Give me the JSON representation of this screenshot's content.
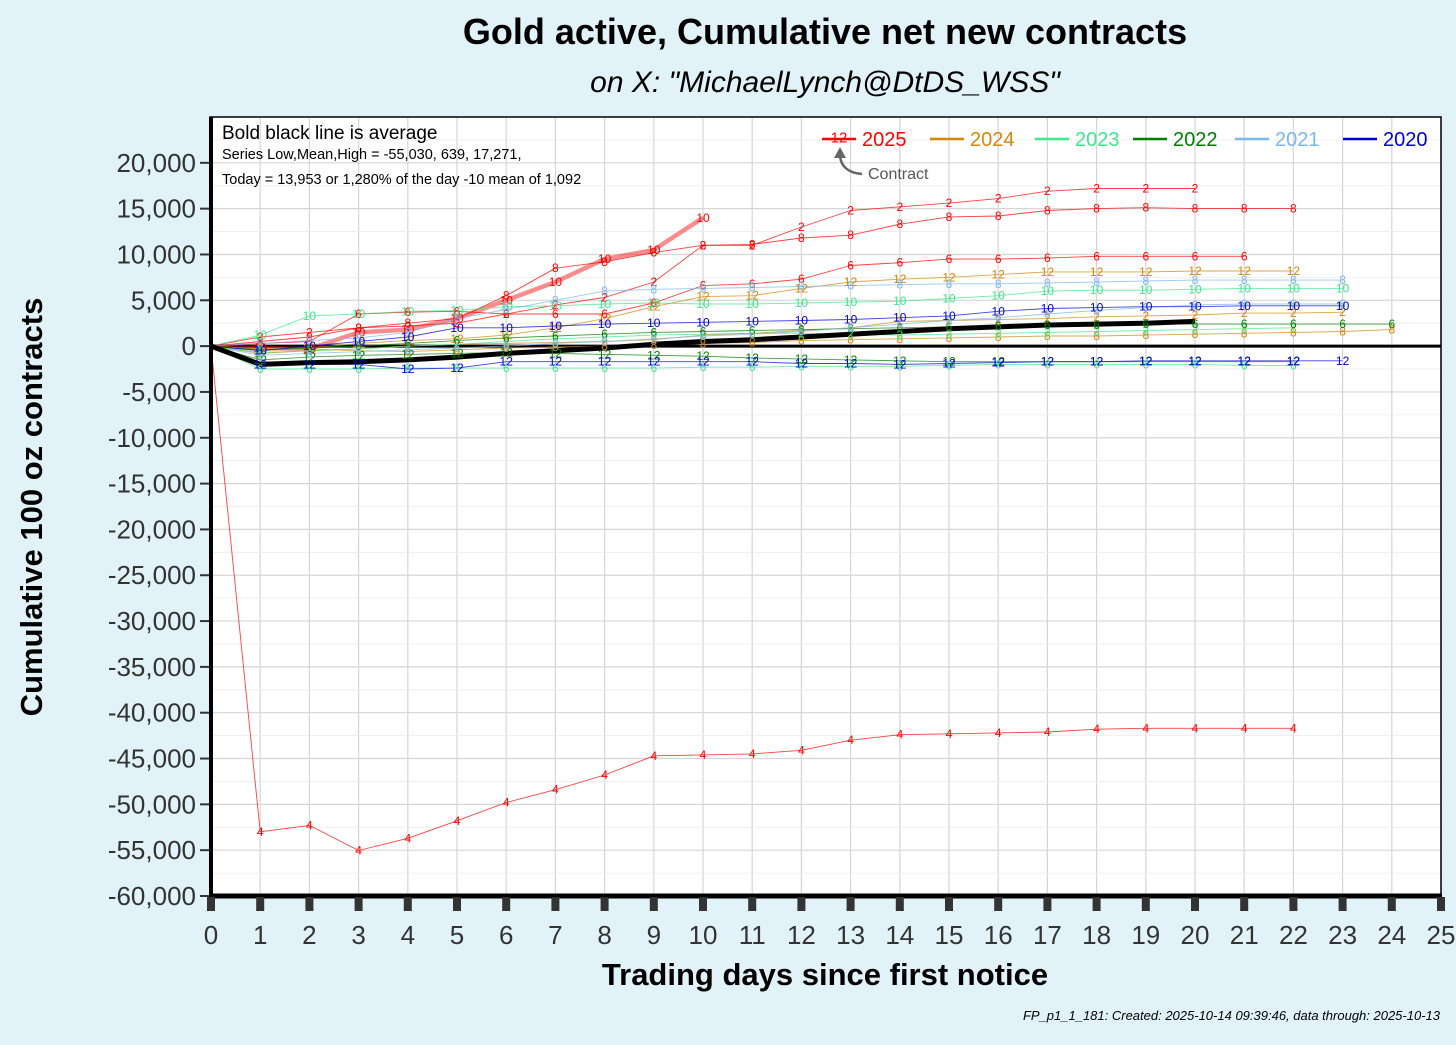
{
  "chart_data": {
    "type": "line",
    "title": "Gold active, Cumulative net new contracts",
    "subtitle": "on X:   \"MichaelLynch@DtDS_WSS\"",
    "xlabel": "Trading days since first notice",
    "ylabel": "Cumulative 100 oz contracts",
    "xlim": [
      0,
      25
    ],
    "ylim": [
      -60000,
      25000
    ],
    "x_ticks": [
      0,
      1,
      2,
      3,
      4,
      5,
      6,
      7,
      8,
      9,
      10,
      11,
      12,
      13,
      14,
      15,
      16,
      17,
      18,
      19,
      20,
      21,
      22,
      23,
      24,
      25
    ],
    "y_ticks": [
      20000,
      15000,
      10000,
      5000,
      0,
      -5000,
      -10000,
      -15000,
      -20000,
      -25000,
      -30000,
      -35000,
      -40000,
      -45000,
      -50000,
      -55000,
      -60000
    ],
    "y_tick_labels": [
      "20,000",
      "15,000",
      "10,000",
      "5,000",
      "0",
      "-5,000",
      "-10,000",
      "-15,000",
      "-20,000",
      "-25,000",
      "-30,000",
      "-35,000",
      "-40,000",
      "-45,000",
      "-50,000",
      "-55,000",
      "-60,000"
    ],
    "x_tick_labels": [
      "0",
      "1",
      "2",
      "3",
      "4",
      "5",
      "6",
      "7",
      "8",
      "9",
      "10",
      "11",
      "12",
      "13",
      "14",
      "15",
      "16",
      "17",
      "18",
      "19",
      "20",
      "21",
      "22",
      "23",
      "24",
      "25"
    ],
    "grid": true,
    "legend_position": "top-right",
    "annotations": {
      "line1": "Bold black line is average",
      "line2": "Series Low,Mean,High = -55,030,    639, 17,271,",
      "line3": "Today = 13,953 or 1,280% of the day -10 mean of 1,092",
      "contract_pointer": "Contract",
      "legend_sample_label": "12"
    },
    "legend": [
      {
        "name": "2025",
        "color": "#ff0000"
      },
      {
        "name": "2024",
        "color": "#d4870a"
      },
      {
        "name": "2023",
        "color": "#3ee88c"
      },
      {
        "name": "2022",
        "color": "#008000"
      },
      {
        "name": "2021",
        "color": "#7ab8f0"
      },
      {
        "name": "2020",
        "color": "#0000dd"
      }
    ],
    "series": [
      {
        "year": "2025",
        "label": "10",
        "color": "#ff0000",
        "bold": true,
        "x": [
          0,
          1,
          2,
          3,
          4,
          5,
          6,
          7,
          8,
          9,
          10
        ],
        "y": [
          0,
          -200,
          -300,
          1500,
          1800,
          3000,
          5000,
          7000,
          9500,
          10500,
          14000
        ]
      },
      {
        "year": "2025",
        "label": "8",
        "color": "#ff0000",
        "x": [
          0,
          1,
          2,
          3,
          4,
          5,
          6,
          7,
          8,
          9,
          10,
          11,
          12,
          13,
          14,
          15,
          16,
          17,
          18,
          19,
          20,
          21,
          22
        ],
        "y": [
          0,
          500,
          1000,
          2000,
          2500,
          3000,
          5500,
          8500,
          9200,
          10200,
          11000,
          11100,
          11800,
          12100,
          13300,
          14100,
          14200,
          14800,
          15000,
          15100,
          15000,
          15000,
          15000
        ]
      },
      {
        "year": "2025",
        "label": "2",
        "color": "#ff0000",
        "x": [
          0,
          1,
          2,
          3,
          4,
          5,
          6,
          7,
          8,
          9,
          10,
          11,
          12,
          13,
          14,
          15,
          16,
          17,
          18,
          19,
          20
        ],
        "y": [
          0,
          1000,
          1500,
          2000,
          2200,
          2500,
          3500,
          4500,
          5300,
          7000,
          11000,
          11000,
          13000,
          14800,
          15200,
          15600,
          16100,
          16900,
          17200,
          17200,
          17200
        ]
      },
      {
        "year": "2025",
        "label": "6",
        "color": "#ff0000",
        "x": [
          0,
          1,
          2,
          3,
          4,
          5,
          6,
          7,
          8,
          9,
          10,
          11,
          12,
          13,
          14,
          15,
          16,
          17,
          18,
          19,
          20,
          21
        ],
        "y": [
          0,
          300,
          500,
          3500,
          3700,
          3800,
          3500,
          3500,
          3500,
          4700,
          6600,
          6800,
          7300,
          8800,
          9100,
          9500,
          9500,
          9600,
          9800,
          9800,
          9800,
          9800
        ]
      },
      {
        "year": "2025",
        "label": "4",
        "color": "#ff0000",
        "x": [
          0,
          1,
          2,
          3,
          4,
          5,
          6,
          7,
          8,
          9,
          10,
          11,
          12,
          13,
          14,
          15,
          16,
          17,
          18,
          19,
          20,
          21,
          22
        ],
        "y": [
          0,
          -53000,
          -52300,
          -55030,
          -53700,
          -51800,
          -49800,
          -48400,
          -46800,
          -44700,
          -44600,
          -44500,
          -44100,
          -43000,
          -42400,
          -42300,
          -42200,
          -42100,
          -41800,
          -41700,
          -41700,
          -41700,
          -41700
        ]
      },
      {
        "year": "2024",
        "label": "12",
        "color": "#d4870a",
        "x": [
          0,
          1,
          2,
          3,
          4,
          5,
          6,
          7,
          8,
          9,
          10,
          11,
          12,
          13,
          14,
          15,
          16,
          17,
          18,
          19,
          20,
          21,
          22
        ],
        "y": [
          0,
          -500,
          -200,
          300,
          600,
          800,
          1200,
          2000,
          3000,
          4300,
          5400,
          5500,
          6300,
          7000,
          7300,
          7500,
          7800,
          8100,
          8100,
          8100,
          8200,
          8200,
          8200
        ]
      },
      {
        "year": "2024",
        "label": "2",
        "color": "#d4870a",
        "x": [
          0,
          1,
          2,
          3,
          4,
          5,
          6,
          7,
          8,
          9,
          10,
          11,
          12,
          13,
          14,
          15,
          16,
          17,
          18,
          19,
          20,
          21,
          22,
          23
        ],
        "y": [
          0,
          -800,
          -500,
          -300,
          0,
          200,
          300,
          400,
          500,
          700,
          1200,
          1400,
          1700,
          2000,
          2700,
          2800,
          2900,
          3000,
          3200,
          3300,
          3400,
          3600,
          3600,
          3700
        ]
      },
      {
        "year": "2024",
        "label": "8",
        "color": "#d4870a",
        "x": [
          0,
          1,
          2,
          3,
          4,
          5,
          6,
          7,
          8,
          9,
          10,
          11,
          12,
          13,
          14,
          15,
          16,
          17,
          18,
          19,
          20,
          21,
          22,
          23,
          24
        ],
        "y": [
          0,
          -300,
          -300,
          -500,
          -600,
          -400,
          -200,
          -100,
          0,
          100,
          300,
          400,
          600,
          700,
          800,
          900,
          1000,
          1100,
          1100,
          1200,
          1300,
          1400,
          1500,
          1600,
          1800
        ]
      },
      {
        "year": "2023",
        "label": "10",
        "color": "#3ee88c",
        "x": [
          0,
          1,
          2,
          3,
          4,
          5,
          6,
          7,
          8,
          9,
          10,
          11,
          12,
          13,
          14,
          15,
          16,
          17,
          18,
          19,
          20,
          21,
          22,
          23
        ],
        "y": [
          0,
          1200,
          3300,
          3500,
          3800,
          3900,
          4300,
          4400,
          4600,
          4700,
          4600,
          4600,
          4700,
          4800,
          4900,
          5200,
          5500,
          6000,
          6100,
          6100,
          6200,
          6300,
          6300,
          6300
        ]
      },
      {
        "year": "2023",
        "label": "6",
        "color": "#3ee88c",
        "x": [
          0,
          1,
          2,
          3,
          4,
          5,
          6,
          7,
          8,
          9,
          10,
          11,
          12,
          13,
          14,
          15,
          16,
          17,
          18,
          19,
          20,
          21,
          22
        ],
        "y": [
          0,
          -2500,
          -2500,
          -2500,
          -2400,
          -2400,
          -2400,
          -2400,
          -2400,
          -2400,
          -2300,
          -2300,
          -2200,
          -2200,
          -2200,
          -2100,
          -2000,
          -2000,
          -2000,
          -2000,
          -2000,
          -2100,
          -2100
        ]
      },
      {
        "year": "2023",
        "label": "2",
        "color": "#3ee88c",
        "x": [
          0,
          1,
          2,
          3,
          4,
          5,
          6,
          7,
          8,
          9,
          10,
          11,
          12,
          13,
          14,
          15,
          16,
          17,
          18,
          19,
          20,
          21,
          22
        ],
        "y": [
          0,
          -700,
          -500,
          -300,
          0,
          200,
          500,
          800,
          1000,
          1200,
          1300,
          1400,
          1400,
          1300,
          1200,
          1300,
          1400,
          1500,
          1600,
          1700,
          1800,
          1900,
          2000
        ]
      },
      {
        "year": "2022",
        "label": "6",
        "color": "#008000",
        "x": [
          0,
          1,
          2,
          3,
          4,
          5,
          6,
          7,
          8,
          9,
          10,
          11,
          12,
          13,
          14,
          15,
          16,
          17,
          18,
          19,
          20,
          21,
          22,
          23,
          24
        ],
        "y": [
          0,
          -400,
          -200,
          0,
          300,
          600,
          900,
          1100,
          1300,
          1500,
          1600,
          1700,
          1800,
          1900,
          2000,
          2100,
          2200,
          2300,
          2300,
          2400,
          2400,
          2400,
          2400,
          2400,
          2400
        ]
      },
      {
        "year": "2022",
        "label": "12",
        "color": "#008000",
        "x": [
          0,
          1,
          2,
          3,
          4,
          5,
          6,
          7,
          8,
          9,
          10,
          11,
          12,
          13,
          14,
          15,
          16,
          17,
          18,
          19,
          20,
          21,
          22
        ],
        "y": [
          0,
          -1500,
          -1200,
          -1000,
          -900,
          -800,
          -700,
          -800,
          -900,
          -1000,
          -1100,
          -1300,
          -1400,
          -1500,
          -1600,
          -1700,
          -1700,
          -1700,
          -1700,
          -1700,
          -1700,
          -1700,
          -1700
        ]
      },
      {
        "year": "2021",
        "label": "8",
        "color": "#7ab8f0",
        "x": [
          0,
          1,
          2,
          3,
          4,
          5,
          6,
          7,
          8,
          9,
          10,
          11,
          12,
          13,
          14,
          15,
          16,
          17,
          18,
          19,
          20,
          21,
          22,
          23
        ],
        "y": [
          0,
          300,
          600,
          900,
          1500,
          3000,
          4000,
          5000,
          6000,
          6200,
          6300,
          6400,
          6500,
          6600,
          6700,
          6800,
          6800,
          6900,
          7000,
          7100,
          7200,
          7200,
          7200,
          7200
        ]
      },
      {
        "year": "2021",
        "label": "6",
        "color": "#7ab8f0",
        "x": [
          0,
          1,
          2,
          3,
          4,
          5,
          6,
          7,
          8,
          9,
          10,
          11,
          12,
          13,
          14,
          15,
          16,
          17,
          18,
          19,
          20,
          21,
          22,
          23
        ],
        "y": [
          0,
          -1000,
          -800,
          -600,
          -400,
          -200,
          0,
          300,
          500,
          800,
          1100,
          1300,
          1600,
          2000,
          2400,
          2800,
          3100,
          3500,
          3900,
          4200,
          4500,
          4600,
          4600,
          4600
        ]
      },
      {
        "year": "2020",
        "label": "10",
        "color": "#0000dd",
        "x": [
          0,
          1,
          2,
          3,
          4,
          5,
          6,
          7,
          8,
          9,
          10,
          11,
          12,
          13,
          14,
          15,
          16,
          17,
          18,
          19,
          20,
          21,
          22,
          23
        ],
        "y": [
          0,
          -500,
          0,
          500,
          1000,
          2000,
          2000,
          2200,
          2400,
          2500,
          2600,
          2700,
          2800,
          2900,
          3100,
          3300,
          3800,
          4100,
          4200,
          4300,
          4300,
          4400,
          4400,
          4400
        ]
      },
      {
        "year": "2020",
        "label": "12",
        "color": "#0000dd",
        "x": [
          0,
          1,
          2,
          3,
          4,
          5,
          6,
          7,
          8,
          9,
          10,
          11,
          12,
          13,
          14,
          15,
          16,
          17,
          18,
          19,
          20,
          21,
          22,
          23
        ],
        "y": [
          0,
          -2000,
          -2000,
          -2000,
          -2500,
          -2400,
          -1700,
          -1700,
          -1700,
          -1700,
          -1700,
          -1700,
          -1900,
          -1900,
          -2000,
          -1900,
          -1800,
          -1700,
          -1700,
          -1600,
          -1600,
          -1600,
          -1600,
          -1600
        ]
      },
      {
        "year": "average",
        "label": "",
        "color": "#000000",
        "bold": true,
        "x": [
          0,
          1,
          2,
          3,
          4,
          5,
          6,
          7,
          8,
          9,
          10,
          11,
          12,
          13,
          14,
          15,
          16,
          17,
          18,
          19,
          20
        ],
        "y": [
          0,
          -2000,
          -1800,
          -1700,
          -1500,
          -1200,
          -800,
          -500,
          -200,
          200,
          500,
          700,
          1000,
          1300,
          1600,
          1900,
          2100,
          2300,
          2400,
          2500,
          2700
        ]
      }
    ]
  },
  "footer": "FP_p1_1_181: Created: 2025-10-14 09:39:46, data through: 2025-10-13"
}
